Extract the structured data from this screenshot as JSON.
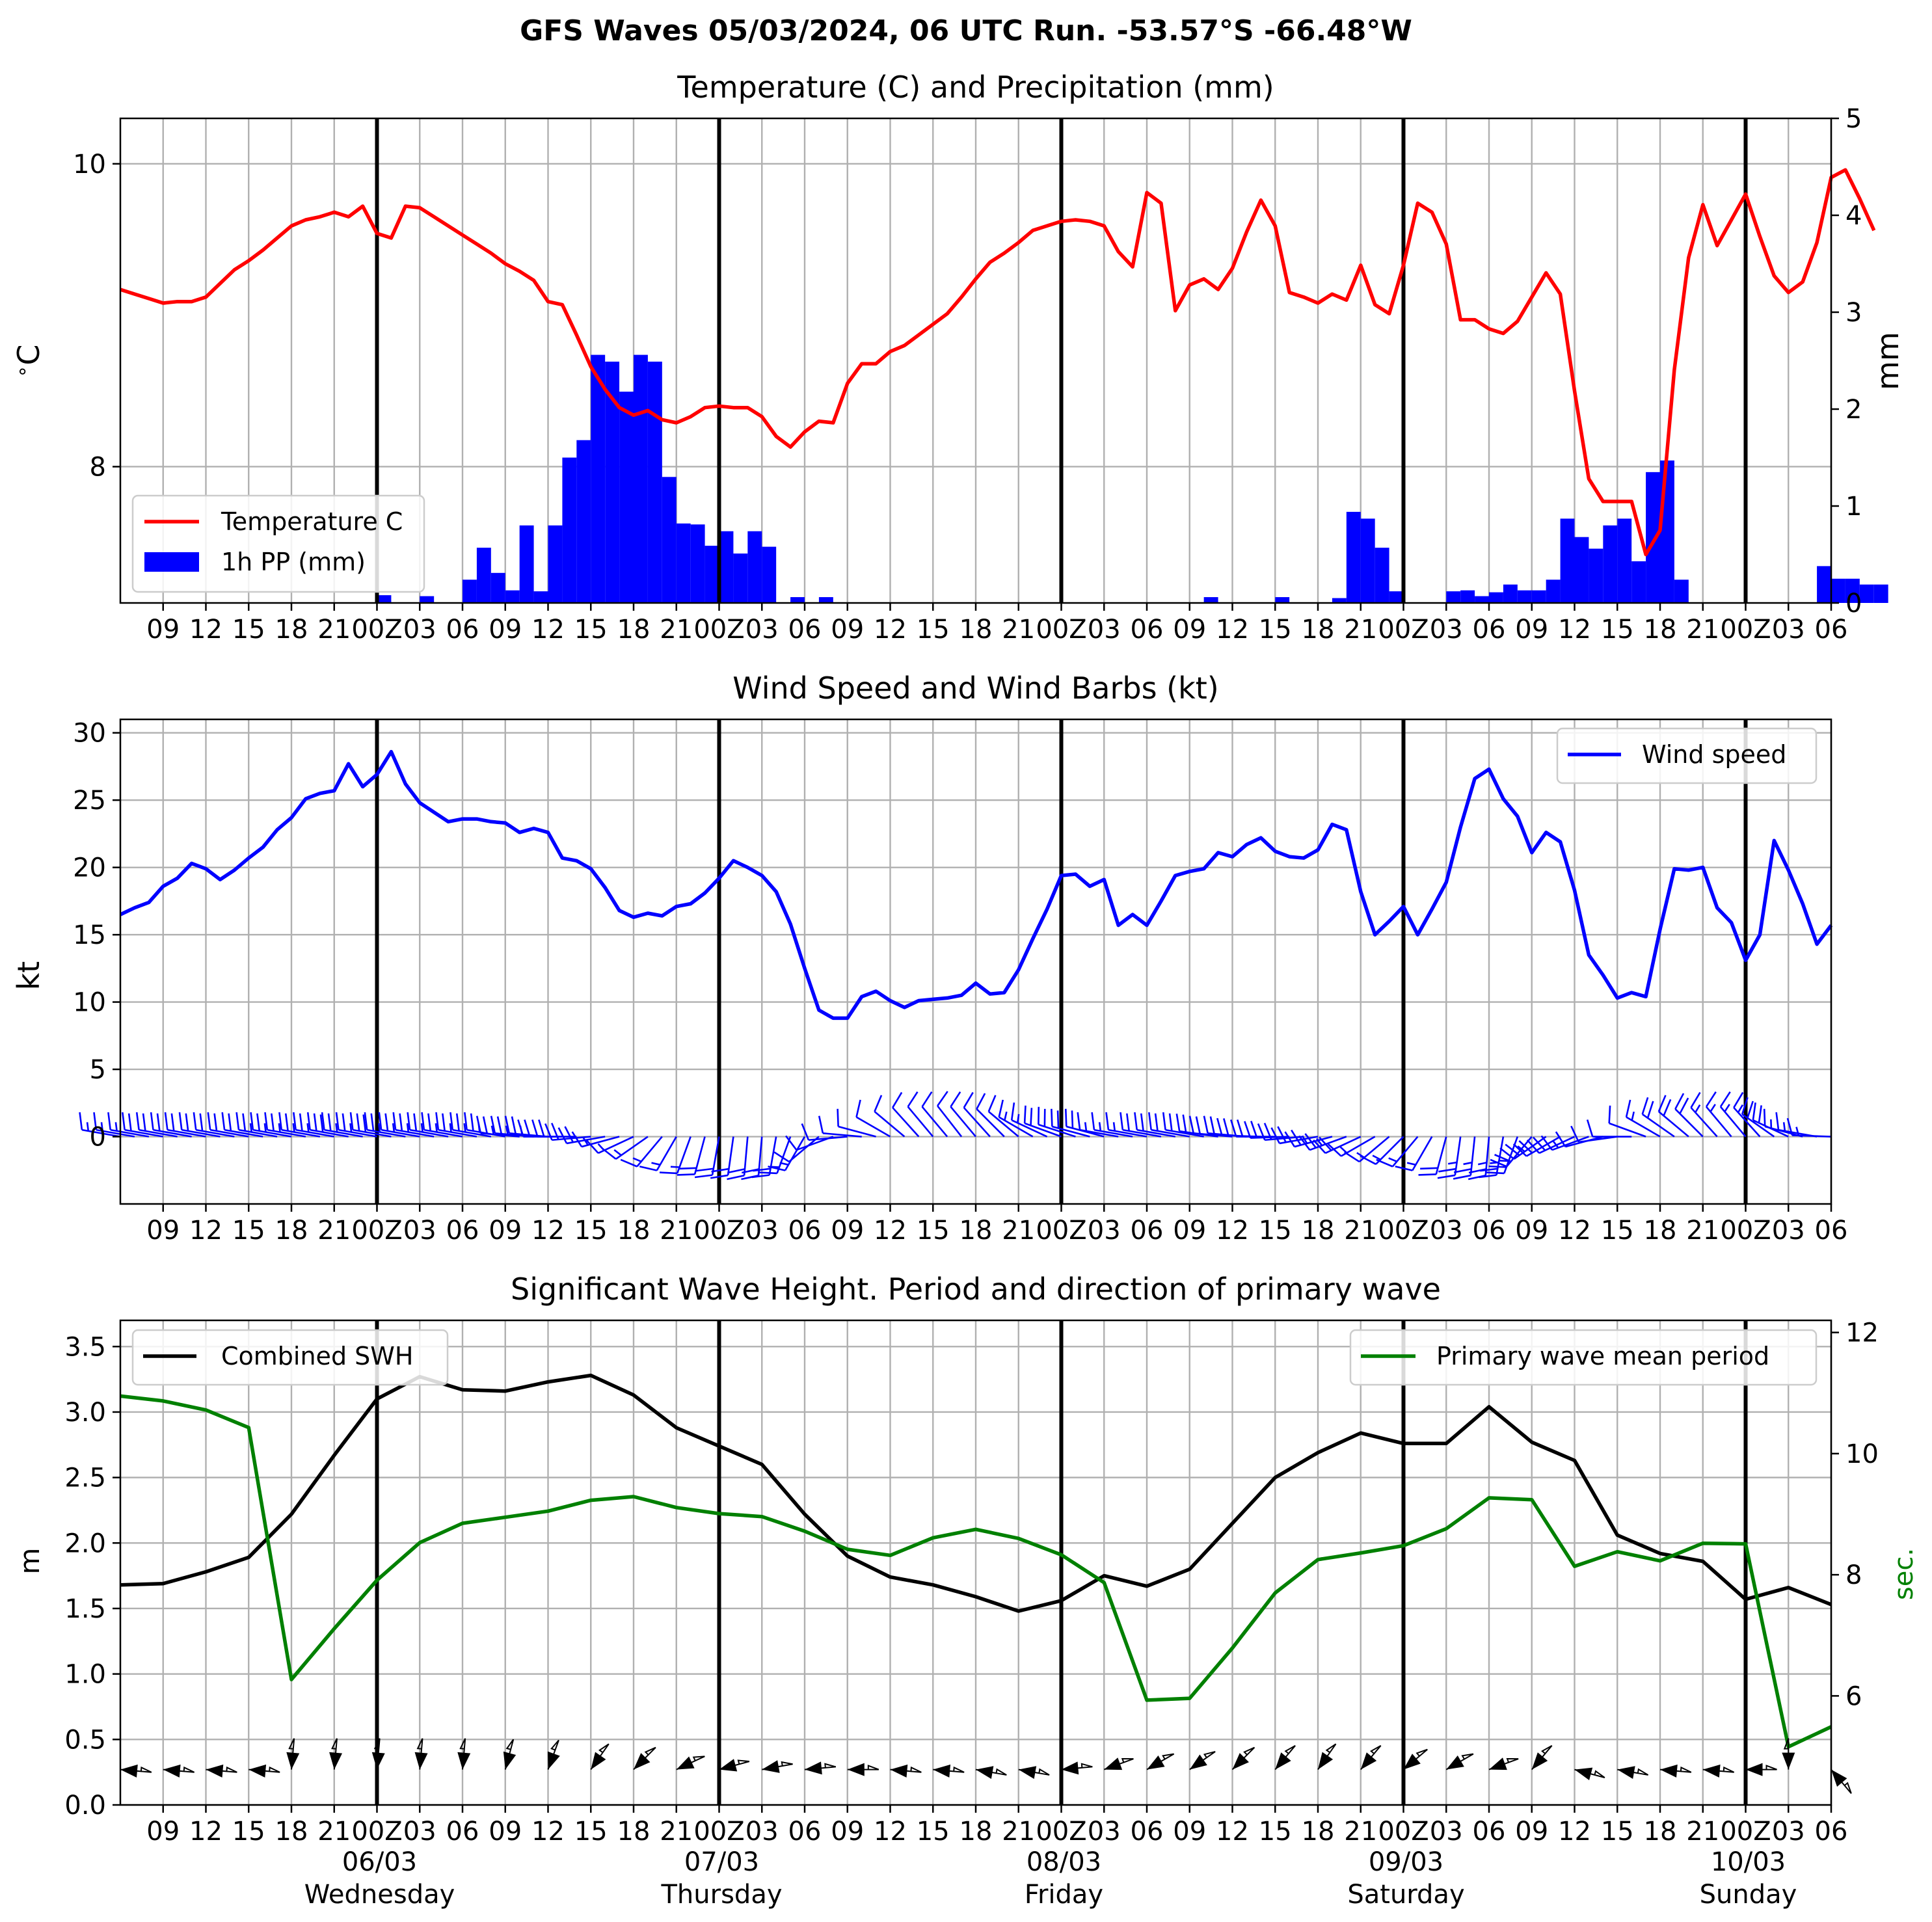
{
  "suptitle": "GFS Waves 05/03/2024, 06 UTC Run. -53.57°S -66.48°W",
  "colors": {
    "temperature": "#ff0000",
    "precip": "#0000ff",
    "wind": "#0000ff",
    "swh": "#000000",
    "period": "#008000",
    "day_line": "#000000"
  },
  "x_axis": {
    "start": "2024-03-05T06:00Z",
    "end": "2024-03-10T06:00Z",
    "tick_labels": [
      "09",
      "12",
      "15",
      "18",
      "21",
      "00Z",
      "03",
      "06",
      "09",
      "12",
      "15",
      "18",
      "21",
      "00Z",
      "03",
      "06",
      "09",
      "12",
      "15",
      "18",
      "21",
      "00Z",
      "03",
      "06",
      "09",
      "12",
      "15",
      "18",
      "21",
      "00Z",
      "03",
      "06",
      "09",
      "12",
      "15",
      "18",
      "21",
      "00Z",
      "03",
      "06"
    ],
    "day_dates": [
      "06/03",
      "07/03",
      "08/03",
      "09/03",
      "10/03"
    ],
    "day_names": [
      "Wednesday",
      "Thursday",
      "Friday",
      "Saturday",
      "Sunday"
    ]
  },
  "chart_data": [
    {
      "type": "line",
      "title": "Temperature (C) and Precipitation (mm)",
      "ylabel": "$^\\circ$C",
      "ylim": [
        7.1,
        10.3
      ],
      "yticks": [
        "8",
        "10"
      ],
      "y2label": "mm",
      "y2lim": [
        0,
        5
      ],
      "y2ticks": [
        "0",
        "1",
        "2",
        "3",
        "4",
        "5"
      ],
      "grid": true,
      "legend": "lower-left",
      "series": [
        {
          "name": "Temperature C",
          "x_hours": 1,
          "values": [
            9.17,
            9.14,
            9.11,
            9.08,
            9.09,
            9.09,
            9.12,
            9.21,
            9.3,
            9.36,
            9.43,
            9.51,
            9.59,
            9.63,
            9.65,
            9.68,
            9.65,
            9.72,
            9.54,
            9.51,
            9.72,
            9.71,
            9.65,
            9.59,
            9.53,
            9.47,
            9.41,
            9.34,
            9.29,
            9.23,
            9.09,
            9.07,
            8.87,
            8.66,
            8.51,
            8.39,
            8.34,
            8.37,
            8.31,
            8.29,
            8.33,
            8.39,
            8.4,
            8.39,
            8.39,
            8.33,
            8.2,
            8.13,
            8.23,
            8.3,
            8.29,
            8.55,
            8.68,
            8.68,
            8.76,
            8.8,
            8.87,
            8.94,
            9.01,
            9.12,
            9.24,
            9.35,
            9.41,
            9.48,
            9.56,
            9.59,
            9.62,
            9.63,
            9.62,
            9.59,
            9.42,
            9.32,
            9.81,
            9.74,
            9.03,
            9.2,
            9.24,
            9.17,
            9.31,
            9.55,
            9.76,
            9.59,
            9.15,
            9.12,
            9.08,
            9.14,
            9.1,
            9.33,
            9.07,
            9.01,
            9.33,
            9.74,
            9.68,
            9.47,
            8.97,
            8.97,
            8.91,
            8.88,
            8.96,
            9.12,
            9.28,
            9.14,
            8.5,
            7.92,
            7.77,
            7.77,
            7.77,
            7.42,
            7.58,
            8.64,
            9.38,
            9.73,
            9.46,
            9.63,
            9.8,
            9.52,
            9.26,
            9.15,
            9.22,
            9.48,
            9.91,
            9.96,
            9.77,
            9.56
          ]
        },
        {
          "name": "1h PP (mm)",
          "x_hours": 1,
          "values": [
            0,
            0,
            0,
            0,
            0,
            0,
            0,
            0,
            0,
            0,
            0,
            0,
            0,
            0,
            0,
            0,
            0,
            0,
            0.08,
            0,
            0,
            0.07,
            0,
            0,
            0.24,
            0.57,
            0.31,
            0.13,
            0.8,
            0.12,
            0.8,
            1.5,
            1.68,
            2.56,
            2.49,
            2.18,
            2.56,
            2.49,
            1.3,
            0.82,
            0.81,
            0.59,
            0.74,
            0.51,
            0.74,
            0.58,
            0,
            0.06,
            0,
            0.06,
            0,
            0,
            0,
            0,
            0,
            0,
            0,
            0,
            0,
            0,
            0,
            0,
            0,
            0,
            0,
            0,
            0,
            0,
            0,
            0,
            0,
            0,
            0,
            0,
            0,
            0,
            0.06,
            0,
            0,
            0,
            0,
            0.06,
            0,
            0,
            0,
            0.05,
            0.94,
            0.87,
            0.57,
            0.12,
            0,
            0,
            0,
            0.12,
            0.13,
            0.07,
            0.11,
            0.19,
            0.13,
            0.13,
            0.24,
            0.87,
            0.68,
            0.56,
            0.8,
            0.87,
            0.43,
            1.35,
            1.47,
            0.24,
            0,
            0,
            0,
            0,
            0,
            0,
            0,
            0,
            0,
            0.38,
            0.25,
            0.25,
            0.19,
            0.19
          ]
        }
      ]
    },
    {
      "type": "line",
      "title": "Wind Speed and Wind Barbs (kt)",
      "ylabel": "kt",
      "ylim": [
        -5,
        31
      ],
      "yticks": [
        "0",
        "5",
        "10",
        "15",
        "20",
        "25",
        "30"
      ],
      "grid": true,
      "legend": "upper-right",
      "series": [
        {
          "name": "Wind speed",
          "x_hours": 1,
          "values": [
            16.5,
            17,
            17.4,
            18.6,
            19.2,
            20.3,
            19.9,
            19.1,
            19.8,
            20.7,
            21.5,
            22.8,
            23.7,
            25.1,
            25.5,
            25.7,
            27.7,
            26,
            26.9,
            28.6,
            26.2,
            24.8,
            24.1,
            23.4,
            23.6,
            23.6,
            23.4,
            23.3,
            22.6,
            22.9,
            22.6,
            20.7,
            20.5,
            19.9,
            18.5,
            16.8,
            16.3,
            16.6,
            16.4,
            17.1,
            17.3,
            18.1,
            19.2,
            20.5,
            20,
            19.4,
            18.2,
            15.8,
            12.5,
            9.4,
            8.8,
            8.8,
            10.4,
            10.8,
            10.1,
            9.6,
            10.1,
            10.2,
            10.3,
            10.5,
            11.4,
            10.6,
            10.7,
            12.4,
            14.7,
            16.9,
            19.4,
            19.5,
            18.6,
            19.1,
            15.7,
            16.5,
            15.7,
            17.5,
            19.4,
            19.7,
            19.9,
            21.1,
            20.8,
            21.7,
            22.2,
            21.2,
            20.8,
            20.7,
            21.3,
            23.2,
            22.8,
            18.2,
            15,
            16,
            17.1,
            15,
            16.9,
            18.9,
            23,
            26.6,
            27.3,
            25.1,
            23.8,
            21.1,
            22.6,
            21.9,
            18.3,
            13.5,
            12,
            10.3,
            10.7,
            10.4,
            15.4,
            19.9,
            19.8,
            20,
            17,
            15.9,
            13.1,
            15,
            22,
            19.8,
            17.3,
            14.3,
            15.7
          ]
        },
        {
          "name": "Wind barbs",
          "x_hours": 1,
          "barb_speed_kt": [
            16.5,
            17,
            17.4,
            18.6,
            19.2,
            20.3,
            19.9,
            19.1,
            19.8,
            20.7,
            21.5,
            22.8,
            23.7,
            25.1,
            25.5,
            25.7,
            27.7,
            26,
            26.9,
            28.6,
            26.2,
            24.8,
            24.1,
            23.4,
            23.6,
            23.6,
            23.4,
            23.3,
            22.6,
            22.9,
            22.6,
            20.7,
            20.5,
            19.9,
            18.5,
            16.8,
            16.3,
            16.6,
            16.4,
            17.1,
            17.3,
            18.1,
            19.2,
            20.5,
            20,
            19.4,
            18.2,
            15.8,
            12.5,
            9.4,
            8.8,
            8.8,
            10.4,
            10.8,
            10.1,
            9.6,
            10.1,
            10.2,
            10.3,
            10.5,
            11.4,
            10.6,
            10.7,
            12.4,
            14.7,
            16.9,
            19.4,
            19.5,
            18.6,
            19.1,
            15.7,
            16.5,
            15.7,
            17.5,
            19.4,
            19.7,
            19.9,
            21.1,
            20.8,
            21.7,
            22.2,
            21.2,
            20.8,
            20.7,
            21.3,
            23.2,
            22.8,
            18.2,
            15,
            16,
            17.1,
            15,
            16.9,
            18.9,
            23,
            26.6,
            27.3,
            25.1,
            23.8,
            21.1,
            22.6,
            21.9,
            18.3,
            13.5,
            12,
            10.3,
            10.7,
            10.4,
            15.4,
            19.9,
            19.8,
            20,
            17,
            15.9,
            13.1,
            15,
            22,
            19.8,
            17.3,
            14.3,
            15.7
          ],
          "barb_dir_deg": [
            280,
            280,
            280,
            280,
            280,
            280,
            280,
            280,
            280,
            280,
            280,
            280,
            280,
            280,
            280,
            280,
            280,
            280,
            280,
            280,
            280,
            280,
            280,
            280,
            280,
            280,
            280,
            280,
            275,
            275,
            275,
            270,
            270,
            265,
            260,
            255,
            245,
            235,
            220,
            210,
            200,
            195,
            190,
            188,
            185,
            185,
            190,
            200,
            210,
            230,
            250,
            265,
            275,
            285,
            300,
            310,
            318,
            320,
            320,
            322,
            320,
            318,
            315,
            310,
            300,
            295,
            290,
            288,
            285,
            285,
            280,
            280,
            280,
            280,
            280,
            280,
            280,
            278,
            275,
            275,
            272,
            270,
            268,
            265,
            260,
            255,
            250,
            245,
            240,
            230,
            225,
            220,
            210,
            195,
            188,
            186,
            185,
            190,
            200,
            220,
            235,
            240,
            245,
            250,
            255,
            262,
            270,
            290,
            300,
            305,
            310,
            315,
            318,
            320,
            320,
            318,
            305,
            295,
            285,
            280,
            272
          ]
        }
      ]
    },
    {
      "type": "line",
      "title": "Significant Wave Height. Period and direction of primary wave",
      "ylabel": "m",
      "ylim": [
        0,
        3.7
      ],
      "yticks": [
        "0.0",
        "0.5",
        "1.0",
        "1.5",
        "2.0",
        "2.5",
        "3.0",
        "3.5"
      ],
      "y2label": "sec.",
      "y2lim": [
        4.2,
        12.2
      ],
      "y2ticks": [
        "6",
        "8",
        "10",
        "12"
      ],
      "grid": true,
      "series": [
        {
          "name": "Combined SWH",
          "x_hours": 3,
          "values": [
            1.68,
            1.69,
            1.78,
            1.89,
            2.22,
            2.67,
            3.1,
            3.27,
            3.17,
            3.16,
            3.23,
            3.28,
            3.13,
            2.88,
            2.74,
            2.6,
            2.22,
            1.9,
            1.74,
            1.68,
            1.59,
            1.48,
            1.56,
            1.75,
            1.67,
            1.8,
            2.15,
            2.5,
            2.69,
            2.84,
            2.76,
            2.76,
            3.04,
            2.77,
            2.63,
            2.06,
            1.92,
            1.86,
            1.57,
            1.66,
            1.53
          ]
        },
        {
          "name": "Primary wave mean period",
          "x_hours": 3,
          "values": [
            10.95,
            10.87,
            10.72,
            10.43,
            6.27,
            7.11,
            7.91,
            8.53,
            8.85,
            8.95,
            9.05,
            9.23,
            9.29,
            9.11,
            9.01,
            8.96,
            8.72,
            8.42,
            8.32,
            8.61,
            8.75,
            8.6,
            8.33,
            7.87,
            5.93,
            5.96,
            6.79,
            7.7,
            8.25,
            8.36,
            8.48,
            8.76,
            9.27,
            9.24,
            8.14,
            8.38,
            8.23,
            8.52,
            8.51,
            5.16,
            5.49
          ]
        },
        {
          "name": "Primary wave direction",
          "x_hours": 3,
          "dir_deg": [
            95,
            95,
            95,
            95,
            5,
            5,
            5,
            5,
            5,
            15,
            20,
            35,
            45,
            65,
            75,
            80,
            85,
            90,
            95,
            95,
            100,
            100,
            85,
            70,
            60,
            55,
            45,
            40,
            35,
            40,
            50,
            60,
            70,
            40,
            105,
            100,
            95,
            95,
            90,
            0,
            140
          ]
        }
      ]
    }
  ]
}
